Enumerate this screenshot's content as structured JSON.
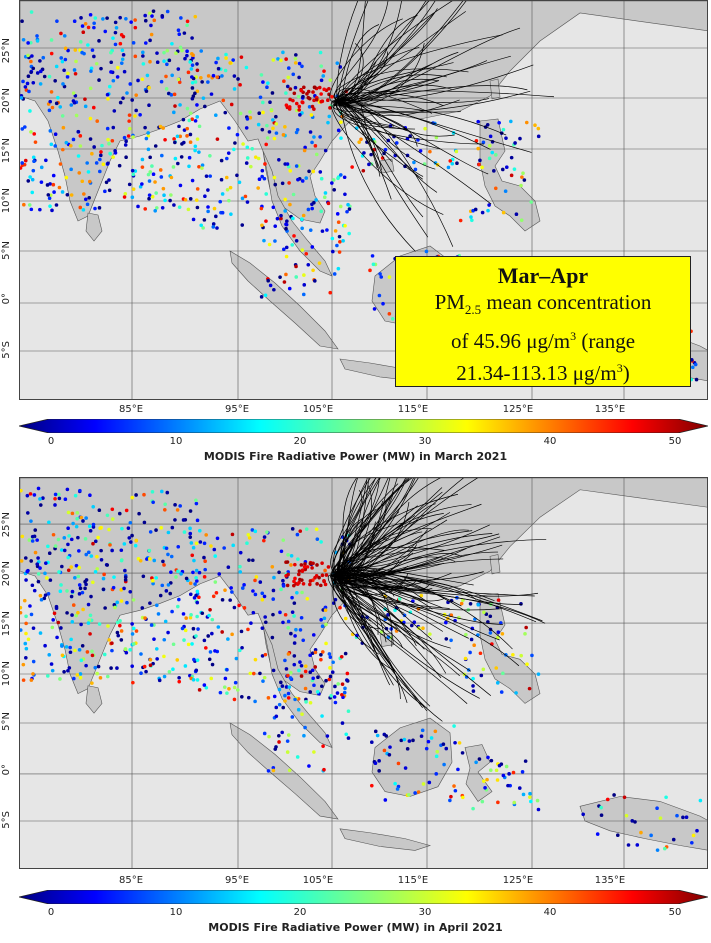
{
  "panels": [
    {
      "id": "march",
      "colorbar_title": "MODIS Fire Radiative Power (MW) in March 2021",
      "trajectory_density": 70
    },
    {
      "id": "april",
      "colorbar_title": "MODIS Fire Radiative Power (MW) in April 2021",
      "trajectory_density": 150
    }
  ],
  "lat_labels": [
    "25°N",
    "20°N",
    "15°N",
    "10°N",
    "5°N",
    "0°",
    "5°S"
  ],
  "lon_labels": [
    "85°E",
    "95°E",
    "105°E",
    "115°E",
    "125°E",
    "135°E"
  ],
  "colorbar": {
    "ticks": [
      "0",
      "10",
      "20",
      "30",
      "40",
      "50"
    ],
    "min": 0,
    "max": 50,
    "colormap": "jet"
  },
  "annotation": {
    "title": "Mar–Apr",
    "line1_pre": "PM",
    "line1_sub": "2.5",
    "line1_post": " mean concentration",
    "line2_pre": "of 45.96 μg/m",
    "line2_sup": "3",
    "line2_post": " (range",
    "line3_pre": "21.34-113.13 μg/m",
    "line3_sup": "3",
    "line3_post": ")"
  },
  "colors": {
    "ocean": "#e6e6e6",
    "land": "#c8c8c8",
    "trajectory": "#000000",
    "annotation_bg": "#ffff00",
    "gridline": "#555555"
  }
}
